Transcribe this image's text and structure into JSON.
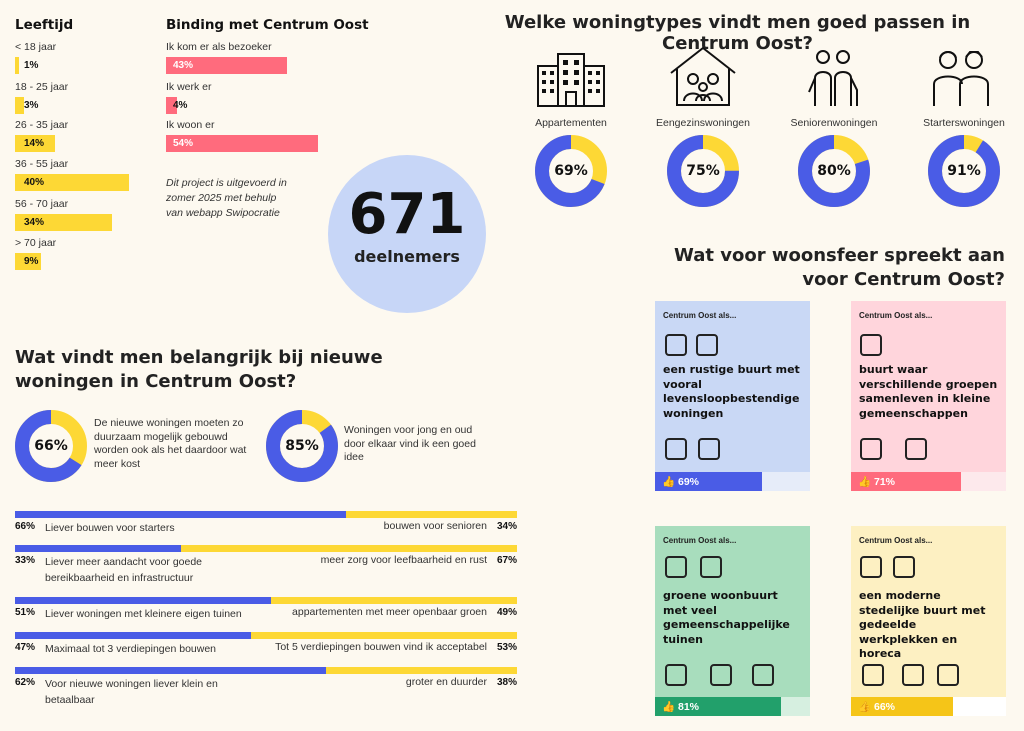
{
  "age": {
    "title": "Leeftijd",
    "rows": [
      {
        "label": "< 18 jaar",
        "pct": "1%",
        "value": 1
      },
      {
        "label": "18 - 25 jaar",
        "pct": "3%",
        "value": 3
      },
      {
        "label": "26 - 35 jaar",
        "pct": "14%",
        "value": 14
      },
      {
        "label": "36 - 55 jaar",
        "pct": "40%",
        "value": 40
      },
      {
        "label": "56 - 70 jaar",
        "pct": "34%",
        "value": 34
      },
      {
        "label": "> 70 jaar",
        "pct": "9%",
        "value": 9
      }
    ]
  },
  "binding": {
    "title": "Binding met Centrum Oost",
    "rows": [
      {
        "label": "Ik kom er als bezoeker",
        "pct": "43%",
        "value": 43
      },
      {
        "label": "Ik werk er",
        "pct": "4%",
        "value": 4
      },
      {
        "label": "Ik woon er",
        "pct": "54%",
        "value": 54
      }
    ],
    "note": "Dit project is uitgevoerd in zomer 2025 met behulp van webapp Swipocratie"
  },
  "participants": {
    "count": "671",
    "label": "deelnemers"
  },
  "housing_types": {
    "title": "Welke woningtypes vindt men goed passen in Centrum Oost?",
    "items": [
      {
        "label": "Appartementen",
        "pct": "69%",
        "value": 69,
        "icon": "apartment-building-icon"
      },
      {
        "label": "Eengezinswoningen",
        "pct": "75%",
        "value": 75,
        "icon": "family-house-icon"
      },
      {
        "label": "Seniorenwoningen",
        "pct": "80%",
        "value": 80,
        "icon": "seniors-icon"
      },
      {
        "label": "Starterswoningen",
        "pct": "91%",
        "value": 91,
        "icon": "young-people-icon"
      }
    ]
  },
  "important": {
    "title": "Wat vindt men belangrijk bij nieuwe woningen in Centrum Oost?",
    "donuts": [
      {
        "pct": "66%",
        "value": 66,
        "text": "De nieuwe woningen moeten zo duurzaam mogelijk gebouwd worden ook als het daardoor wat meer kost"
      },
      {
        "pct": "85%",
        "value": 85,
        "text": "Woningen voor jong en oud door elkaar vind ik een goed idee"
      }
    ]
  },
  "comparisons": [
    {
      "left_pct": "66%",
      "left_value": 66,
      "left": "Liever bouwen voor starters",
      "right": "bouwen voor senioren",
      "right_pct": "34%"
    },
    {
      "left_pct": "33%",
      "left_value": 33,
      "left": "Liever meer aandacht voor goede bereikbaarheid en infrastructuur",
      "right": "meer zorg voor leefbaarheid en rust",
      "right_pct": "67%"
    },
    {
      "left_pct": "51%",
      "left_value": 51,
      "left": "Liever woningen met kleinere eigen tuinen",
      "right": "appartementen met meer openbaar groen",
      "right_pct": "49%"
    },
    {
      "left_pct": "47%",
      "left_value": 47,
      "left": "Maximaal tot 3 verdiepingen bouwen",
      "right": "Tot 5 verdiepingen bouwen vind ik acceptabel",
      "right_pct": "53%"
    },
    {
      "left_pct": "62%",
      "left_value": 62,
      "left": "Voor nieuwe woningen liever klein en betaalbaar",
      "right": "groter en duurder",
      "right_pct": "38%"
    }
  ],
  "atmosphere": {
    "title": "Wat voor woonsfeer spreekt aan voor Centrum Oost?",
    "cards": [
      {
        "small": "Centrum Oost als...",
        "text": "een rustige buurt met vooral levensloopbestendige woningen",
        "pct": "69%",
        "value": 69,
        "bg": "#c9d8f5",
        "bar": "#4a5ce6",
        "track": "#e6ecf9"
      },
      {
        "small": "Centrum Oost als...",
        "text": "buurt waar verschillende groepen samenleven in kleine gemeenschappen",
        "pct": "71%",
        "value": 71,
        "bg": "#ffd5dc",
        "bar": "#ff6b7d",
        "track": "#fde9ec"
      },
      {
        "small": "Centrum Oost als...",
        "text": "groene woonbuurt met veel gemeenschappelijke tuinen",
        "pct": "81%",
        "value": 81,
        "bg": "#a8ddbd",
        "bar": "#22a06b",
        "track": "#d6efe0"
      },
      {
        "small": "Centrum Oost als...",
        "text": "een moderne stedelijke buurt met gedeelde werkplekken en horeca",
        "pct": "66%",
        "value": 66,
        "bg": "#fdf0c2",
        "bar": "#f5c518",
        "track": "#fff"
      }
    ]
  },
  "colors": {
    "blue": "#4a5ce6",
    "yellow": "#fdd835",
    "pink": "#ff6b7d",
    "circle": "#c7d6f7"
  }
}
